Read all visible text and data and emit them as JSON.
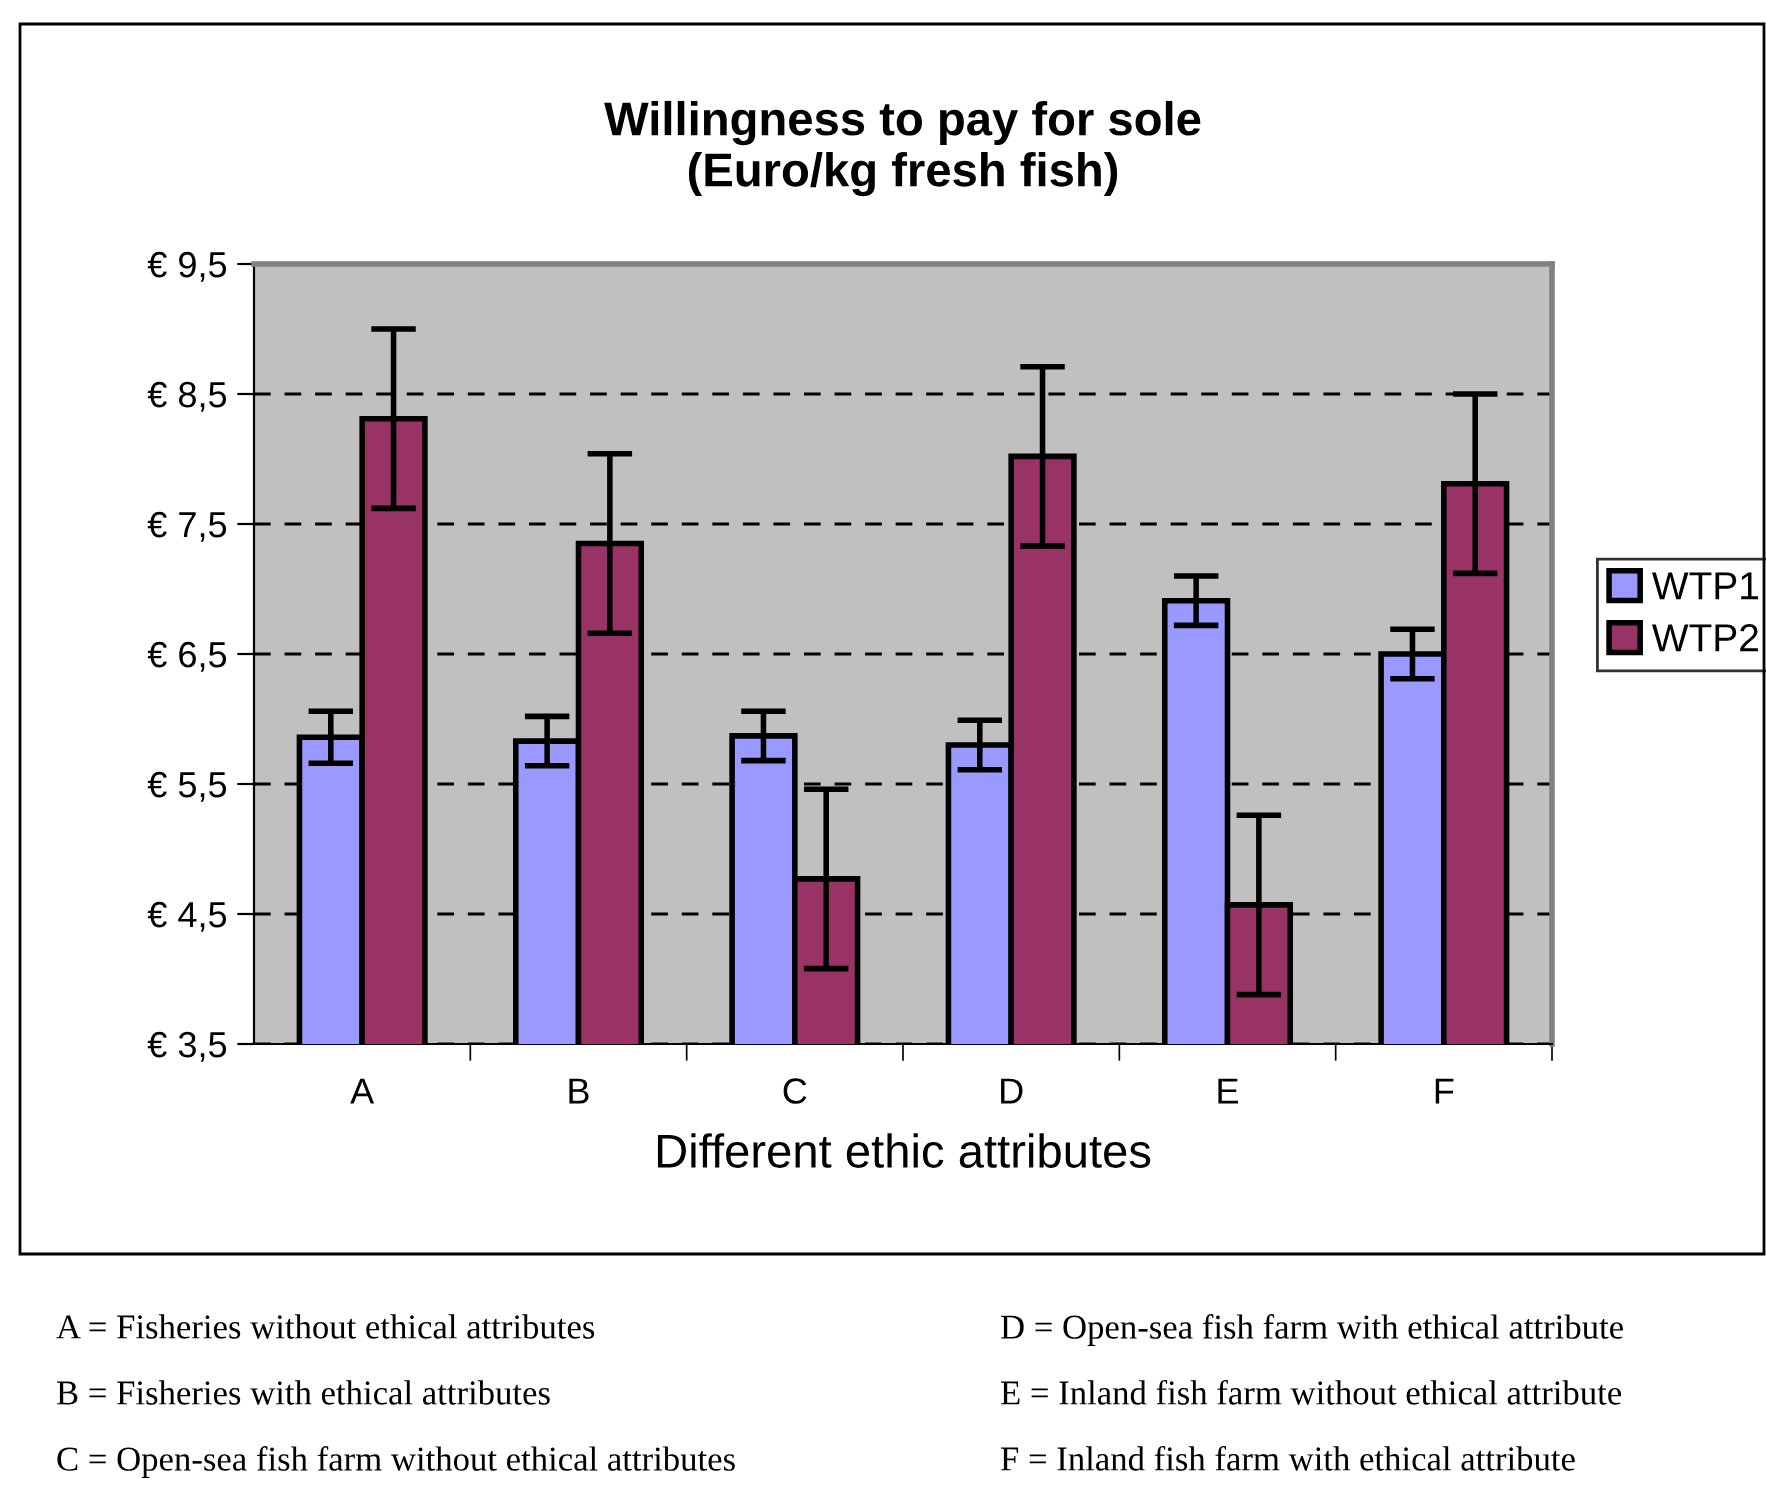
{
  "chart_data": {
    "type": "bar",
    "title": "Willingness to pay for sole\n(Euro/kg fresh fish)",
    "xlabel": "Different ethic attributes",
    "categories": [
      "A",
      "B",
      "C",
      "D",
      "E",
      "F"
    ],
    "series": [
      {
        "name": "WTP1",
        "color": "#9999ff",
        "values": [
          5.86,
          5.83,
          5.87,
          5.8,
          6.91,
          6.5
        ],
        "errors": [
          0.2,
          0.19,
          0.19,
          0.19,
          0.19,
          0.19
        ]
      },
      {
        "name": "WTP2",
        "color": "#993366",
        "values": [
          8.31,
          7.35,
          4.77,
          8.02,
          4.57,
          7.81
        ],
        "errors": [
          0.69,
          0.69,
          0.69,
          0.69,
          0.69,
          0.69
        ]
      }
    ],
    "ylim": [
      3.5,
      9.5
    ],
    "yticks": [
      {
        "value": 3.5,
        "label": "€ 3,5"
      },
      {
        "value": 4.5,
        "label": "€ 4,5"
      },
      {
        "value": 5.5,
        "label": "€ 5,5"
      },
      {
        "value": 6.5,
        "label": "€ 6,5"
      },
      {
        "value": 7.5,
        "label": "€ 7,5"
      },
      {
        "value": 8.5,
        "label": "€ 8,5"
      },
      {
        "value": 9.5,
        "label": "€ 9,5"
      }
    ],
    "grid": "y",
    "legend": "right",
    "annotations": [
      "A = Fisheries without ethical attributes",
      "D = Open-sea fish farm with ethical attribute",
      "B = Fisheries with ethical attributes",
      "E = Inland fish farm without ethical attribute",
      "C = Open-sea fish farm without ethical attributes",
      "F = Inland fish farm with ethical attribute"
    ]
  }
}
